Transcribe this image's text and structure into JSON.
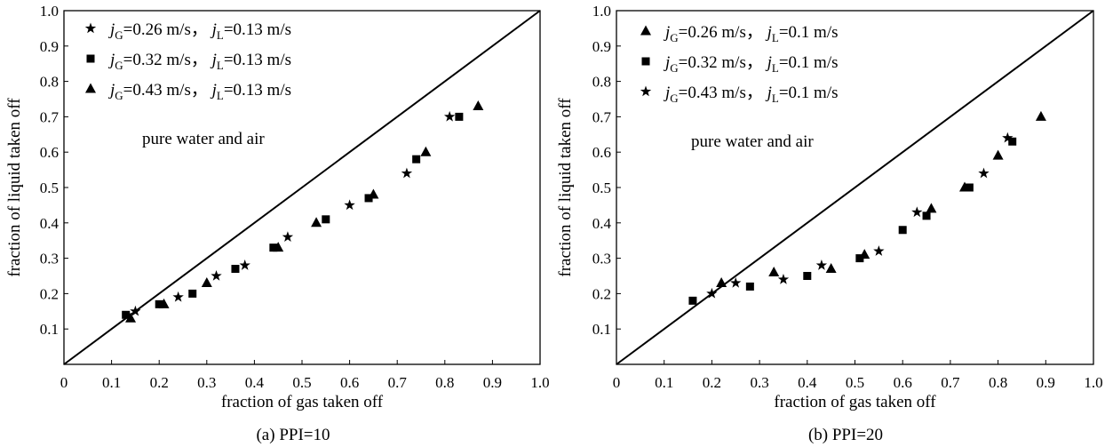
{
  "chart_data": [
    {
      "type": "scatter",
      "caption": "(a) PPI=10",
      "annotation": "pure water and air",
      "xlabel": "fraction of gas taken off",
      "ylabel": "fraction of liquid taken off",
      "xlim": [
        0,
        1.0
      ],
      "ylim": [
        0,
        1.0
      ],
      "x_ticks": [
        "0",
        "0.1",
        "0.2",
        "0.3",
        "0.4",
        "0.5",
        "0.6",
        "0.7",
        "0.8",
        "0.9",
        "1.0"
      ],
      "y_ticks": [
        "0.1",
        "0.2",
        "0.3",
        "0.4",
        "0.5",
        "0.6",
        "0.7",
        "0.8",
        "0.9",
        "1.0"
      ],
      "reference_line": "y = x",
      "series": [
        {
          "name_jg": "=0.26 m/s",
          "name_jl": "=0.13 m/s",
          "marker": "star",
          "points": [
            [
              0.15,
              0.15
            ],
            [
              0.24,
              0.19
            ],
            [
              0.32,
              0.25
            ],
            [
              0.38,
              0.28
            ],
            [
              0.47,
              0.36
            ],
            [
              0.6,
              0.45
            ],
            [
              0.72,
              0.54
            ],
            [
              0.81,
              0.7
            ]
          ]
        },
        {
          "name_jg": "=0.32 m/s",
          "name_jl": "=0.13 m/s",
          "marker": "square",
          "points": [
            [
              0.13,
              0.14
            ],
            [
              0.2,
              0.17
            ],
            [
              0.27,
              0.2
            ],
            [
              0.36,
              0.27
            ],
            [
              0.44,
              0.33
            ],
            [
              0.55,
              0.41
            ],
            [
              0.64,
              0.47
            ],
            [
              0.74,
              0.58
            ],
            [
              0.83,
              0.7
            ]
          ]
        },
        {
          "name_jg": "=0.43 m/s",
          "name_jl": "=0.13 m/s",
          "marker": "triangle",
          "points": [
            [
              0.14,
              0.13
            ],
            [
              0.21,
              0.17
            ],
            [
              0.3,
              0.23
            ],
            [
              0.45,
              0.33
            ],
            [
              0.53,
              0.4
            ],
            [
              0.65,
              0.48
            ],
            [
              0.76,
              0.6
            ],
            [
              0.87,
              0.73
            ]
          ]
        }
      ]
    },
    {
      "type": "scatter",
      "caption": "(b) PPI=20",
      "annotation": "pure water and air",
      "xlabel": "fraction of gas taken off",
      "ylabel": "fraction of liquid taken off",
      "xlim": [
        0,
        1.0
      ],
      "ylim": [
        0,
        1.0
      ],
      "x_ticks": [
        "0",
        "0.1",
        "0.2",
        "0.3",
        "0.4",
        "0.5",
        "0.6",
        "0.7",
        "0.8",
        "0.9",
        "1.0"
      ],
      "y_ticks": [
        "0.1",
        "0.2",
        "0.3",
        "0.4",
        "0.5",
        "0.6",
        "0.7",
        "0.8",
        "0.9",
        "1.0"
      ],
      "reference_line": "y = x",
      "series": [
        {
          "name_jg": "=0.26 m/s",
          "name_jl": "=0.1 m/s",
          "marker": "triangle",
          "points": [
            [
              0.22,
              0.23
            ],
            [
              0.33,
              0.26
            ],
            [
              0.45,
              0.27
            ],
            [
              0.52,
              0.31
            ],
            [
              0.66,
              0.44
            ],
            [
              0.73,
              0.5
            ],
            [
              0.8,
              0.59
            ],
            [
              0.89,
              0.7
            ]
          ]
        },
        {
          "name_jg": "=0.32 m/s",
          "name_jl": "=0.1 m/s",
          "marker": "square",
          "points": [
            [
              0.16,
              0.18
            ],
            [
              0.28,
              0.22
            ],
            [
              0.4,
              0.25
            ],
            [
              0.51,
              0.3
            ],
            [
              0.6,
              0.38
            ],
            [
              0.65,
              0.42
            ],
            [
              0.74,
              0.5
            ],
            [
              0.83,
              0.63
            ]
          ]
        },
        {
          "name_jg": "=0.43 m/s",
          "name_jl": "=0.1 m/s",
          "marker": "star",
          "points": [
            [
              0.2,
              0.2
            ],
            [
              0.25,
              0.23
            ],
            [
              0.35,
              0.24
            ],
            [
              0.43,
              0.28
            ],
            [
              0.55,
              0.32
            ],
            [
              0.63,
              0.43
            ],
            [
              0.77,
              0.54
            ],
            [
              0.82,
              0.64
            ]
          ]
        }
      ]
    }
  ],
  "symbols": {
    "jg_main": "j",
    "jg_sub": "G",
    "jl_main": "j",
    "jl_sub": "L",
    "sep": "，"
  }
}
